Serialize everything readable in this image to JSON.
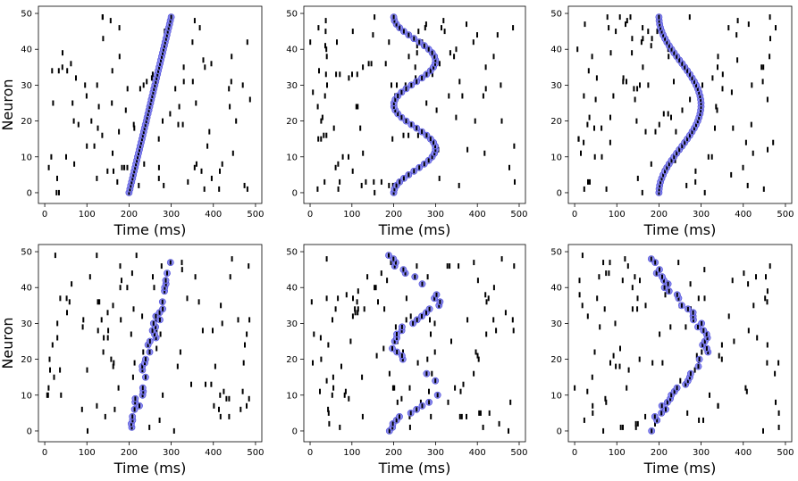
{
  "figure": {
    "background": "#ffffff"
  },
  "colors": {
    "spike": "#000000",
    "sequence_fill": "#8b8bf2",
    "sequence_stroke": "#4b4bd6",
    "axis": "#000000"
  },
  "chart_data": [
    {
      "type": "scatter",
      "panel": "top-left",
      "xlabel": "Time (ms)",
      "ylabel": "Neuron",
      "xlim": [
        -15,
        515
      ],
      "ylim": [
        -3,
        52
      ],
      "xticks": [
        0,
        100,
        200,
        300,
        400,
        500
      ],
      "yticks": [
        0,
        10,
        20,
        30,
        40,
        50
      ],
      "grid": false,
      "sequence": {
        "shape": "linear",
        "t_start": 200,
        "t_end": 300,
        "neurons": [
          0,
          49
        ],
        "irregular": false
      },
      "background_spikes": 100,
      "seed": 11
    },
    {
      "type": "scatter",
      "panel": "top-middle",
      "xlabel": "Time (ms)",
      "ylabel": "",
      "xlim": [
        -15,
        515
      ],
      "ylim": [
        -3,
        52
      ],
      "xticks": [
        0,
        100,
        200,
        300,
        400,
        500
      ],
      "yticks": [
        0,
        10,
        20,
        30,
        40,
        50
      ],
      "grid": false,
      "sequence": {
        "shape": "wave",
        "t_center": 250,
        "amplitude": 50,
        "cycles": 2,
        "neurons": [
          0,
          49
        ],
        "irregular": false
      },
      "background_spikes": 110,
      "seed": 23
    },
    {
      "type": "scatter",
      "panel": "top-right",
      "xlabel": "Time (ms)",
      "ylabel": "",
      "xlim": [
        -15,
        515
      ],
      "ylim": [
        -3,
        52
      ],
      "xticks": [
        0,
        100,
        200,
        300,
        400,
        500
      ],
      "yticks": [
        0,
        10,
        20,
        30,
        40,
        50
      ],
      "grid": false,
      "sequence": {
        "shape": "arc",
        "t_center": 250,
        "amplitude": 50,
        "cycles": 1,
        "neurons": [
          0,
          49
        ],
        "irregular": false
      },
      "background_spikes": 110,
      "seed": 37
    },
    {
      "type": "scatter",
      "panel": "bottom-left",
      "xlabel": "Time (ms)",
      "ylabel": "Neuron",
      "xlim": [
        -15,
        515
      ],
      "ylim": [
        -3,
        52
      ],
      "xticks": [
        0,
        100,
        200,
        300,
        400,
        500
      ],
      "yticks": [
        0,
        10,
        20,
        30,
        40,
        50
      ],
      "grid": false,
      "sequence": {
        "shape": "linear",
        "t_start": 205,
        "t_end": 300,
        "neurons": [
          1,
          47
        ],
        "irregular": true
      },
      "background_spikes": 100,
      "seed": 41
    },
    {
      "type": "scatter",
      "panel": "bottom-middle",
      "xlabel": "Time (ms)",
      "ylabel": "",
      "xlim": [
        -15,
        515
      ],
      "ylim": [
        -3,
        52
      ],
      "xticks": [
        0,
        100,
        200,
        300,
        400,
        500
      ],
      "yticks": [
        0,
        10,
        20,
        30,
        40,
        50
      ],
      "grid": false,
      "sequence": {
        "shape": "wave",
        "t_center": 250,
        "amplitude": 55,
        "cycles": 2,
        "neurons": [
          0,
          49
        ],
        "irregular": true
      },
      "background_spikes": 110,
      "seed": 53
    },
    {
      "type": "scatter",
      "panel": "bottom-right",
      "xlabel": "Time (ms)",
      "ylabel": "",
      "xlim": [
        -15,
        515
      ],
      "ylim": [
        -3,
        52
      ],
      "xticks": [
        0,
        100,
        200,
        300,
        400,
        500
      ],
      "yticks": [
        0,
        10,
        20,
        30,
        40,
        50
      ],
      "grid": false,
      "sequence": {
        "shape": "arc",
        "t_center": 250,
        "amplitude": 60,
        "cycles": 1,
        "neurons": [
          0,
          48
        ],
        "irregular": true
      },
      "background_spikes": 100,
      "seed": 67
    }
  ]
}
